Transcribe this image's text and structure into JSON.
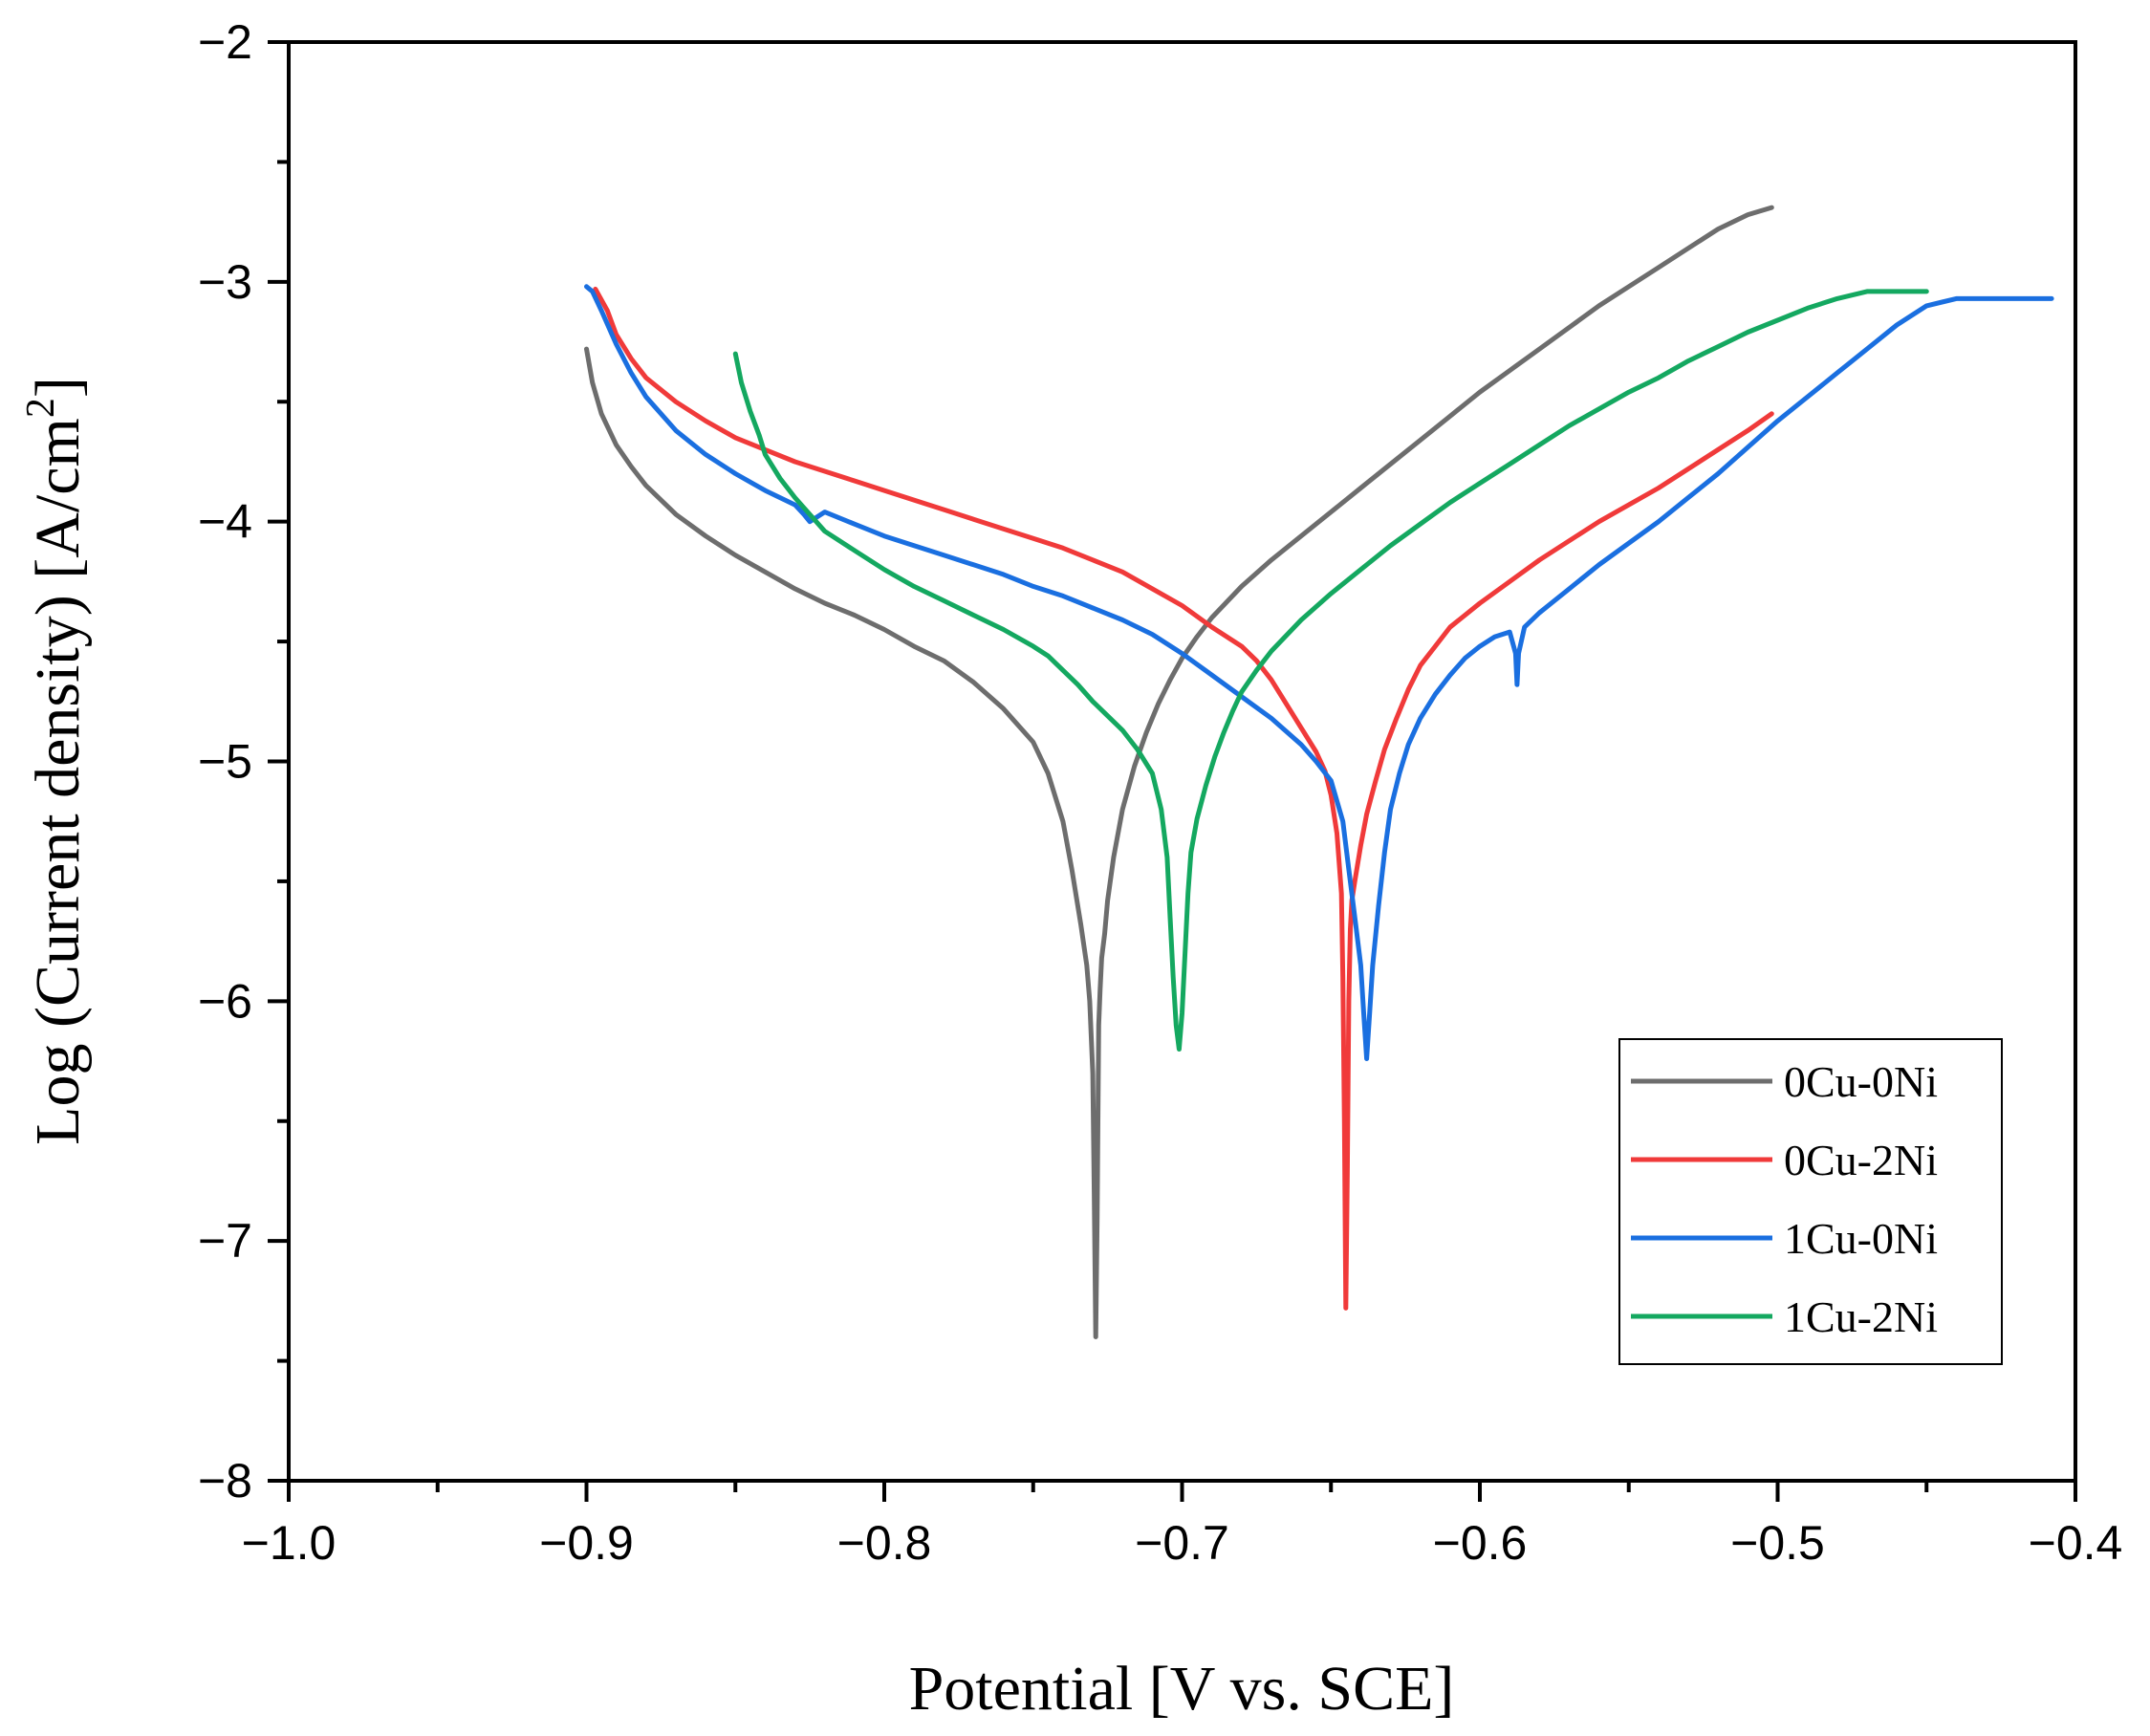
{
  "chart_data": {
    "type": "line",
    "title": "",
    "xlabel": "Potential  [V vs. SCE]",
    "ylabel": "Log (Current density) [A/cm",
    "ylabel_sup": "2",
    "ylabel_end": "]",
    "xlim": [
      -1.0,
      -0.4
    ],
    "ylim": [
      -8,
      -2
    ],
    "x_major_ticks": [
      -1.0,
      -0.9,
      -0.8,
      -0.7,
      -0.6,
      -0.5,
      -0.4
    ],
    "x_tick_labels": [
      "−1.0",
      "−0.9",
      "−0.8",
      "−0.7",
      "−0.6",
      "−0.5",
      "−0.4"
    ],
    "x_minor_ticks": [
      -0.95,
      -0.85,
      -0.75,
      -0.65,
      -0.55,
      -0.45
    ],
    "y_major_ticks": [
      -8,
      -7,
      -6,
      -5,
      -4,
      -3,
      -2
    ],
    "y_tick_labels": [
      "−8",
      "−7",
      "−6",
      "−5",
      "−4",
      "−3",
      "−2"
    ],
    "y_minor_ticks": [
      -7.5,
      -6.5,
      -5.5,
      -4.5,
      -3.5,
      -2.5
    ],
    "grid": false,
    "legend_position": "bottom-right",
    "series": [
      {
        "name": "0Cu-0Ni",
        "color": "#6d6d6d",
        "x": [
          -0.9,
          -0.898,
          -0.895,
          -0.89,
          -0.885,
          -0.88,
          -0.87,
          -0.86,
          -0.85,
          -0.84,
          -0.83,
          -0.82,
          -0.81,
          -0.8,
          -0.79,
          -0.78,
          -0.77,
          -0.76,
          -0.75,
          -0.745,
          -0.74,
          -0.737,
          -0.734,
          -0.732,
          -0.731,
          -0.73,
          -0.7295,
          -0.729,
          -0.7285,
          -0.728,
          -0.7275,
          -0.727,
          -0.726,
          -0.725,
          -0.723,
          -0.72,
          -0.716,
          -0.712,
          -0.708,
          -0.704,
          -0.7,
          -0.695,
          -0.69,
          -0.68,
          -0.67,
          -0.66,
          -0.65,
          -0.64,
          -0.63,
          -0.62,
          -0.61,
          -0.6,
          -0.59,
          -0.58,
          -0.57,
          -0.56,
          -0.55,
          -0.54,
          -0.53,
          -0.52,
          -0.51,
          -0.502
        ],
        "y": [
          -3.28,
          -3.42,
          -3.55,
          -3.68,
          -3.77,
          -3.85,
          -3.97,
          -4.06,
          -4.14,
          -4.21,
          -4.28,
          -4.34,
          -4.39,
          -4.45,
          -4.52,
          -4.58,
          -4.67,
          -4.78,
          -4.92,
          -5.05,
          -5.25,
          -5.45,
          -5.68,
          -5.85,
          -6.0,
          -6.3,
          -6.8,
          -7.4,
          -6.9,
          -6.1,
          -5.95,
          -5.82,
          -5.72,
          -5.58,
          -5.4,
          -5.2,
          -5.02,
          -4.88,
          -4.76,
          -4.66,
          -4.57,
          -4.48,
          -4.4,
          -4.27,
          -4.16,
          -4.06,
          -3.96,
          -3.86,
          -3.76,
          -3.66,
          -3.56,
          -3.46,
          -3.37,
          -3.28,
          -3.19,
          -3.1,
          -3.02,
          -2.94,
          -2.86,
          -2.78,
          -2.72,
          -2.69
        ]
      },
      {
        "name": "0Cu-2Ni",
        "color": "#f03a3a",
        "x": [
          -0.897,
          -0.893,
          -0.89,
          -0.885,
          -0.88,
          -0.87,
          -0.86,
          -0.85,
          -0.84,
          -0.83,
          -0.82,
          -0.81,
          -0.8,
          -0.79,
          -0.78,
          -0.77,
          -0.76,
          -0.75,
          -0.74,
          -0.73,
          -0.72,
          -0.71,
          -0.7,
          -0.69,
          -0.68,
          -0.675,
          -0.67,
          -0.665,
          -0.66,
          -0.655,
          -0.652,
          -0.65,
          -0.648,
          -0.6465,
          -0.646,
          -0.6455,
          -0.645,
          -0.6445,
          -0.644,
          -0.6435,
          -0.643,
          -0.642,
          -0.64,
          -0.638,
          -0.635,
          -0.632,
          -0.628,
          -0.624,
          -0.62,
          -0.615,
          -0.61,
          -0.6,
          -0.59,
          -0.58,
          -0.57,
          -0.56,
          -0.55,
          -0.54,
          -0.53,
          -0.52,
          -0.51,
          -0.502
        ],
        "y": [
          -3.03,
          -3.12,
          -3.22,
          -3.32,
          -3.4,
          -3.5,
          -3.58,
          -3.65,
          -3.7,
          -3.75,
          -3.79,
          -3.83,
          -3.87,
          -3.91,
          -3.95,
          -3.99,
          -4.03,
          -4.07,
          -4.11,
          -4.16,
          -4.21,
          -4.28,
          -4.35,
          -4.44,
          -4.52,
          -4.58,
          -4.66,
          -4.76,
          -4.86,
          -4.96,
          -5.04,
          -5.14,
          -5.3,
          -5.55,
          -5.9,
          -6.5,
          -7.28,
          -6.7,
          -6.0,
          -5.7,
          -5.58,
          -5.5,
          -5.35,
          -5.22,
          -5.08,
          -4.95,
          -4.82,
          -4.7,
          -4.6,
          -4.52,
          -4.44,
          -4.34,
          -4.25,
          -4.16,
          -4.08,
          -4.0,
          -3.93,
          -3.86,
          -3.78,
          -3.7,
          -3.62,
          -3.55
        ]
      },
      {
        "name": "1Cu-0Ni",
        "color": "#1a6fe0",
        "x": [
          -0.9,
          -0.898,
          -0.895,
          -0.89,
          -0.885,
          -0.88,
          -0.87,
          -0.86,
          -0.85,
          -0.84,
          -0.83,
          -0.827,
          -0.825,
          -0.82,
          -0.81,
          -0.8,
          -0.79,
          -0.78,
          -0.77,
          -0.76,
          -0.75,
          -0.74,
          -0.73,
          -0.72,
          -0.71,
          -0.7,
          -0.69,
          -0.68,
          -0.67,
          -0.66,
          -0.655,
          -0.65,
          -0.646,
          -0.644,
          -0.642,
          -0.64,
          -0.639,
          -0.638,
          -0.637,
          -0.636,
          -0.634,
          -0.632,
          -0.63,
          -0.627,
          -0.624,
          -0.62,
          -0.615,
          -0.61,
          -0.605,
          -0.6,
          -0.595,
          -0.59,
          -0.588,
          -0.5875,
          -0.587,
          -0.585,
          -0.58,
          -0.57,
          -0.56,
          -0.55,
          -0.54,
          -0.53,
          -0.52,
          -0.51,
          -0.5,
          -0.49,
          -0.48,
          -0.47,
          -0.46,
          -0.45,
          -0.44,
          -0.432,
          -0.42,
          -0.408
        ],
        "y": [
          -3.02,
          -3.04,
          -3.12,
          -3.26,
          -3.38,
          -3.48,
          -3.62,
          -3.72,
          -3.8,
          -3.87,
          -3.93,
          -3.97,
          -4.0,
          -3.96,
          -4.01,
          -4.06,
          -4.1,
          -4.14,
          -4.18,
          -4.22,
          -4.27,
          -4.31,
          -4.36,
          -4.41,
          -4.47,
          -4.55,
          -4.64,
          -4.73,
          -4.82,
          -4.93,
          -5.0,
          -5.08,
          -5.25,
          -5.45,
          -5.65,
          -5.85,
          -6.05,
          -6.24,
          -6.05,
          -5.85,
          -5.6,
          -5.38,
          -5.2,
          -5.05,
          -4.93,
          -4.82,
          -4.72,
          -4.64,
          -4.57,
          -4.52,
          -4.48,
          -4.46,
          -4.55,
          -4.68,
          -4.55,
          -4.44,
          -4.38,
          -4.28,
          -4.18,
          -4.09,
          -4.0,
          -3.9,
          -3.8,
          -3.69,
          -3.58,
          -3.48,
          -3.38,
          -3.28,
          -3.18,
          -3.1,
          -3.07,
          -3.07,
          -3.07,
          -3.07
        ]
      },
      {
        "name": "1Cu-2Ni",
        "color": "#14a860",
        "x": [
          -0.85,
          -0.848,
          -0.845,
          -0.842,
          -0.84,
          -0.835,
          -0.83,
          -0.825,
          -0.82,
          -0.81,
          -0.8,
          -0.79,
          -0.78,
          -0.77,
          -0.76,
          -0.75,
          -0.745,
          -0.74,
          -0.735,
          -0.73,
          -0.725,
          -0.72,
          -0.715,
          -0.71,
          -0.707,
          -0.705,
          -0.704,
          -0.703,
          -0.702,
          -0.701,
          -0.7,
          -0.699,
          -0.698,
          -0.697,
          -0.695,
          -0.692,
          -0.689,
          -0.686,
          -0.683,
          -0.68,
          -0.675,
          -0.67,
          -0.66,
          -0.65,
          -0.64,
          -0.63,
          -0.62,
          -0.61,
          -0.6,
          -0.59,
          -0.58,
          -0.57,
          -0.56,
          -0.55,
          -0.54,
          -0.53,
          -0.52,
          -0.51,
          -0.5,
          -0.49,
          -0.48,
          -0.47,
          -0.46,
          -0.45
        ],
        "y": [
          -3.3,
          -3.42,
          -3.54,
          -3.64,
          -3.72,
          -3.82,
          -3.9,
          -3.97,
          -4.04,
          -4.12,
          -4.2,
          -4.27,
          -4.33,
          -4.39,
          -4.45,
          -4.52,
          -4.56,
          -4.62,
          -4.68,
          -4.75,
          -4.81,
          -4.87,
          -4.95,
          -5.05,
          -5.2,
          -5.4,
          -5.65,
          -5.9,
          -6.1,
          -6.2,
          -6.05,
          -5.8,
          -5.55,
          -5.38,
          -5.24,
          -5.1,
          -4.98,
          -4.88,
          -4.79,
          -4.71,
          -4.62,
          -4.54,
          -4.41,
          -4.3,
          -4.2,
          -4.1,
          -4.01,
          -3.92,
          -3.84,
          -3.76,
          -3.68,
          -3.6,
          -3.53,
          -3.46,
          -3.4,
          -3.33,
          -3.27,
          -3.21,
          -3.16,
          -3.11,
          -3.07,
          -3.04,
          -3.04,
          -3.04
        ]
      }
    ]
  }
}
